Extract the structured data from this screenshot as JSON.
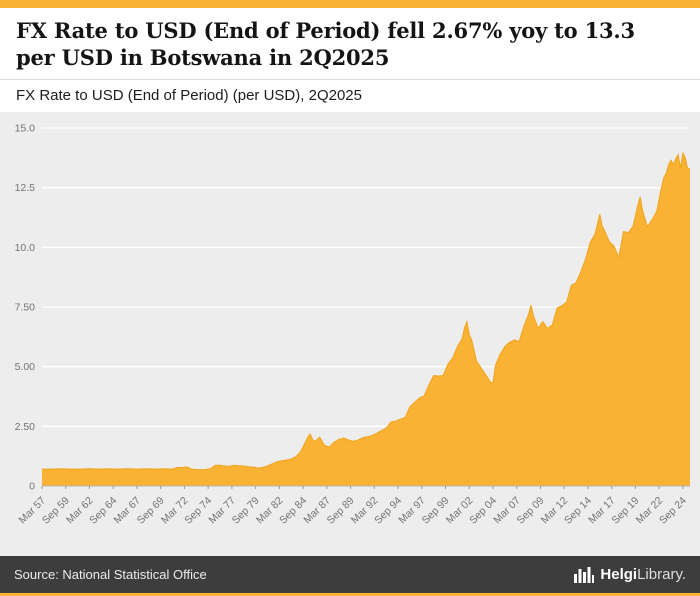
{
  "accent_color": "#F9B233",
  "header": {
    "title_line1": "FX Rate to USD (End of Period) fell 2.67% yoy to 13.3",
    "title_line2": "per USD in Botswana in 2Q2025",
    "subtitle": "FX Rate to USD (End of Period) (per USD), 2Q2025"
  },
  "footer": {
    "source": "Source: National Statistical Office",
    "brand_bold": "Helgi",
    "brand_regular": "Library."
  },
  "chart_data": {
    "type": "area",
    "title": "FX Rate to USD (End of Period) fell 2.67% yoy to 13.3 per USD in Botswana in 2Q2025",
    "subtitle": "FX Rate to USD (End of Period) (per USD), 2Q2025",
    "series_name": "FX Rate to USD (End of Period), per USD, Botswana",
    "fill_color": "#F9B233",
    "stroke_color": "#EFA41C",
    "plot_bg": "#EDEDED",
    "grid": true,
    "legend": "none",
    "ylim": [
      0,
      15
    ],
    "xlim": [
      1957.25,
      2025.5
    ],
    "y_ticks": [
      {
        "v": 0,
        "label": "0"
      },
      {
        "v": 2.5,
        "label": "2.50"
      },
      {
        "v": 5,
        "label": "5.00"
      },
      {
        "v": 7.5,
        "label": "7.50"
      },
      {
        "v": 10,
        "label": "10.0"
      },
      {
        "v": 12.5,
        "label": "12.5"
      },
      {
        "v": 15,
        "label": "15.0"
      }
    ],
    "x_ticks": [
      {
        "t": 1957.25,
        "label": "Mar 57"
      },
      {
        "t": 1959.75,
        "label": "Sep 59"
      },
      {
        "t": 1962.25,
        "label": "Mar 62"
      },
      {
        "t": 1964.75,
        "label": "Sep 64"
      },
      {
        "t": 1967.25,
        "label": "Mar 67"
      },
      {
        "t": 1969.75,
        "label": "Sep 69"
      },
      {
        "t": 1972.25,
        "label": "Mar 72"
      },
      {
        "t": 1974.75,
        "label": "Sep 74"
      },
      {
        "t": 1977.25,
        "label": "Mar 77"
      },
      {
        "t": 1979.75,
        "label": "Sep 79"
      },
      {
        "t": 1982.25,
        "label": "Mar 82"
      },
      {
        "t": 1984.75,
        "label": "Sep 84"
      },
      {
        "t": 1987.25,
        "label": "Mar 87"
      },
      {
        "t": 1989.75,
        "label": "Sep 89"
      },
      {
        "t": 1992.25,
        "label": "Mar 92"
      },
      {
        "t": 1994.75,
        "label": "Sep 94"
      },
      {
        "t": 1997.25,
        "label": "Mar 97"
      },
      {
        "t": 1999.75,
        "label": "Sep 99"
      },
      {
        "t": 2002.25,
        "label": "Mar 02"
      },
      {
        "t": 2004.75,
        "label": "Sep 04"
      },
      {
        "t": 2007.25,
        "label": "Mar 07"
      },
      {
        "t": 2009.75,
        "label": "Sep 09"
      },
      {
        "t": 2012.25,
        "label": "Mar 12"
      },
      {
        "t": 2014.75,
        "label": "Sep 14"
      },
      {
        "t": 2017.25,
        "label": "Mar 17"
      },
      {
        "t": 2019.75,
        "label": "Sep 19"
      },
      {
        "t": 2022.25,
        "label": "Mar 22"
      },
      {
        "t": 2024.75,
        "label": "Sep 24"
      }
    ],
    "latest_value": 13.3,
    "yoy_change_pct": -2.67,
    "points": [
      [
        1957.25,
        0.71
      ],
      [
        1958.25,
        0.71
      ],
      [
        1959.25,
        0.72
      ],
      [
        1960.25,
        0.71
      ],
      [
        1961.25,
        0.71
      ],
      [
        1962.25,
        0.72
      ],
      [
        1963.25,
        0.71
      ],
      [
        1964.25,
        0.72
      ],
      [
        1965.25,
        0.71
      ],
      [
        1966.25,
        0.72
      ],
      [
        1967.25,
        0.71
      ],
      [
        1968.25,
        0.72
      ],
      [
        1969.25,
        0.71
      ],
      [
        1970.25,
        0.72
      ],
      [
        1971.0,
        0.71
      ],
      [
        1971.5,
        0.78
      ],
      [
        1972.0,
        0.77
      ],
      [
        1972.5,
        0.8
      ],
      [
        1973.0,
        0.71
      ],
      [
        1973.5,
        0.69
      ],
      [
        1974.25,
        0.68
      ],
      [
        1975.0,
        0.73
      ],
      [
        1975.5,
        0.87
      ],
      [
        1976.0,
        0.87
      ],
      [
        1976.5,
        0.84
      ],
      [
        1977.0,
        0.83
      ],
      [
        1977.5,
        0.87
      ],
      [
        1978.0,
        0.85
      ],
      [
        1978.5,
        0.84
      ],
      [
        1979.0,
        0.81
      ],
      [
        1979.5,
        0.79
      ],
      [
        1980.0,
        0.75
      ],
      [
        1980.5,
        0.78
      ],
      [
        1981.0,
        0.84
      ],
      [
        1981.5,
        0.93
      ],
      [
        1982.0,
        1.01
      ],
      [
        1982.5,
        1.06
      ],
      [
        1983.0,
        1.09
      ],
      [
        1983.5,
        1.13
      ],
      [
        1984.0,
        1.23
      ],
      [
        1984.5,
        1.44
      ],
      [
        1985.0,
        1.85
      ],
      [
        1985.25,
        2.05
      ],
      [
        1985.5,
        2.18
      ],
      [
        1985.75,
        1.94
      ],
      [
        1986.0,
        1.87
      ],
      [
        1986.5,
        2.04
      ],
      [
        1987.0,
        1.7
      ],
      [
        1987.5,
        1.63
      ],
      [
        1988.0,
        1.83
      ],
      [
        1988.5,
        1.95
      ],
      [
        1989.0,
        2.01
      ],
      [
        1989.5,
        1.93
      ],
      [
        1990.0,
        1.87
      ],
      [
        1990.5,
        1.92
      ],
      [
        1991.0,
        2.02
      ],
      [
        1991.5,
        2.06
      ],
      [
        1992.0,
        2.11
      ],
      [
        1992.5,
        2.21
      ],
      [
        1993.0,
        2.32
      ],
      [
        1993.5,
        2.42
      ],
      [
        1994.0,
        2.68
      ],
      [
        1994.5,
        2.72
      ],
      [
        1995.0,
        2.8
      ],
      [
        1995.5,
        2.87
      ],
      [
        1996.0,
        3.32
      ],
      [
        1996.5,
        3.51
      ],
      [
        1997.0,
        3.69
      ],
      [
        1997.5,
        3.77
      ],
      [
        1998.0,
        4.23
      ],
      [
        1998.5,
        4.62
      ],
      [
        1999.0,
        4.61
      ],
      [
        1999.5,
        4.63
      ],
      [
        2000.0,
        5.1
      ],
      [
        2000.5,
        5.36
      ],
      [
        2001.0,
        5.84
      ],
      [
        2001.5,
        6.17
      ],
      [
        2001.75,
        6.62
      ],
      [
        2002.0,
        6.89
      ],
      [
        2002.25,
        6.33
      ],
      [
        2002.5,
        6.13
      ],
      [
        2002.75,
        5.7
      ],
      [
        2003.0,
        5.24
      ],
      [
        2003.5,
        4.95
      ],
      [
        2004.0,
        4.65
      ],
      [
        2004.5,
        4.34
      ],
      [
        2004.75,
        4.31
      ],
      [
        2005.0,
        5.05
      ],
      [
        2005.5,
        5.51
      ],
      [
        2006.0,
        5.85
      ],
      [
        2006.5,
        6.02
      ],
      [
        2007.0,
        6.12
      ],
      [
        2007.5,
        6.05
      ],
      [
        2008.0,
        6.68
      ],
      [
        2008.5,
        7.2
      ],
      [
        2008.75,
        7.58
      ],
      [
        2009.0,
        7.15
      ],
      [
        2009.5,
        6.61
      ],
      [
        2010.0,
        6.89
      ],
      [
        2010.5,
        6.6
      ],
      [
        2011.0,
        6.75
      ],
      [
        2011.5,
        7.46
      ],
      [
        2012.0,
        7.55
      ],
      [
        2012.5,
        7.7
      ],
      [
        2013.0,
        8.41
      ],
      [
        2013.5,
        8.52
      ],
      [
        2014.0,
        8.98
      ],
      [
        2014.5,
        9.51
      ],
      [
        2015.0,
        10.22
      ],
      [
        2015.5,
        10.56
      ],
      [
        2016.0,
        11.39
      ],
      [
        2016.25,
        10.88
      ],
      [
        2016.5,
        10.7
      ],
      [
        2017.0,
        10.23
      ],
      [
        2017.5,
        10.05
      ],
      [
        2018.0,
        9.58
      ],
      [
        2018.5,
        10.66
      ],
      [
        2019.0,
        10.62
      ],
      [
        2019.5,
        10.88
      ],
      [
        2020.0,
        11.76
      ],
      [
        2020.25,
        12.12
      ],
      [
        2020.5,
        11.55
      ],
      [
        2021.0,
        10.87
      ],
      [
        2021.5,
        11.14
      ],
      [
        2022.0,
        11.52
      ],
      [
        2022.5,
        12.52
      ],
      [
        2022.75,
        12.92
      ],
      [
        2023.0,
        13.12
      ],
      [
        2023.25,
        13.46
      ],
      [
        2023.5,
        13.65
      ],
      [
        2023.75,
        13.47
      ],
      [
        2024.0,
        13.7
      ],
      [
        2024.25,
        13.89
      ],
      [
        2024.5,
        13.32
      ],
      [
        2024.75,
        13.95
      ],
      [
        2025.0,
        13.75
      ],
      [
        2025.25,
        13.3
      ],
      [
        2025.5,
        13.3
      ]
    ]
  }
}
